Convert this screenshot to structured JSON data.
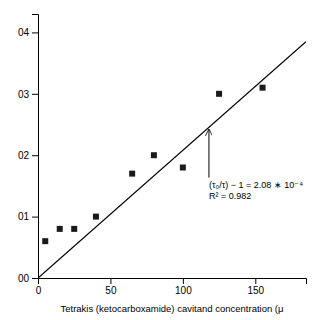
{
  "chart_data": {
    "type": "scatter",
    "x_label": "Tetrakis (ketocarboxamide) cavitand concentration (μ",
    "series": [
      {
        "type": "scatter",
        "marker": "square",
        "color": "#1a1a1a",
        "x": [
          5,
          15,
          25,
          40,
          65,
          80,
          100,
          125,
          155
        ],
        "values": [
          0.006,
          0.008,
          0.008,
          0.01,
          0.017,
          0.02,
          0.018,
          0.03,
          0.031
        ]
      },
      {
        "type": "line",
        "color": "#000000",
        "x": [
          0,
          185
        ],
        "values": [
          0,
          0.03848
        ]
      }
    ],
    "xlim": [
      0,
      185
    ],
    "ylim": [
      0.0,
      0.043
    ],
    "xticks": [
      0,
      50,
      100,
      150
    ],
    "yticks": [
      {
        "value": 0.0,
        "label": "00"
      },
      {
        "value": 0.01,
        "label": "01"
      },
      {
        "value": 0.02,
        "label": "02"
      },
      {
        "value": 0.03,
        "label": "03"
      },
      {
        "value": 0.04,
        "label": "04"
      }
    ],
    "annotation": {
      "text": "(τ₀/τ) − 1 = 2.08 ∗ 10⁻⁴\nR² = 0.982",
      "x": 118,
      "y": 0.0245
    },
    "grid": false
  }
}
